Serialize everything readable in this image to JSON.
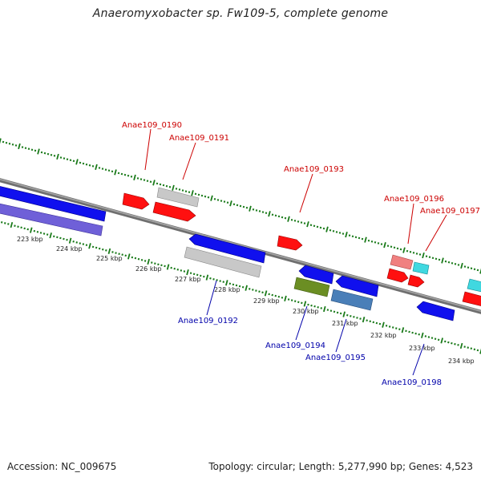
{
  "title": "Anaeromyxobacter sp. Fw109-5, complete genome",
  "footer": {
    "accession_label": "Accession:",
    "accession": "NC_009675",
    "topology_label": "Topology:",
    "topology": "circular",
    "length_label": "Length:",
    "length": "5,277,990 bp",
    "genes_label": "Genes:",
    "genes": "4,523"
  },
  "colors": {
    "forward_strand_label": "#cc0000",
    "reverse_strand_label": "#0000aa",
    "backbone": "#808080",
    "tick_track": "#1a7a1a",
    "red": "#ff0000",
    "blue": "#0000ee",
    "silver": "#c0c0c0",
    "purple": "#6a5acd",
    "olive": "#6b8e23",
    "steelblue": "#4682b4",
    "pink": "#f08080",
    "cyan": "#00ced1"
  },
  "scale": {
    "unit": "kbp",
    "ticks": [
      "223 kbp",
      "224 kbp",
      "225 kbp",
      "226 kbp",
      "227 kbp",
      "228 kbp",
      "229 kbp",
      "230 kbp",
      "231 kbp",
      "232 kbp",
      "233 kbp",
      "234 kbp"
    ]
  },
  "gene_labels": [
    {
      "text": "Anae109_0190",
      "strand": "forward"
    },
    {
      "text": "Anae109_0191",
      "strand": "forward"
    },
    {
      "text": "Anae109_0193",
      "strand": "forward"
    },
    {
      "text": "Anae109_0196",
      "strand": "forward"
    },
    {
      "text": "Anae109_0197",
      "strand": "forward"
    },
    {
      "text": "Anae109_0192",
      "strand": "reverse"
    },
    {
      "text": "Anae109_0194",
      "strand": "reverse"
    },
    {
      "text": "Anae109_0195",
      "strand": "reverse"
    },
    {
      "text": "Anae109_0198",
      "strand": "reverse"
    }
  ]
}
